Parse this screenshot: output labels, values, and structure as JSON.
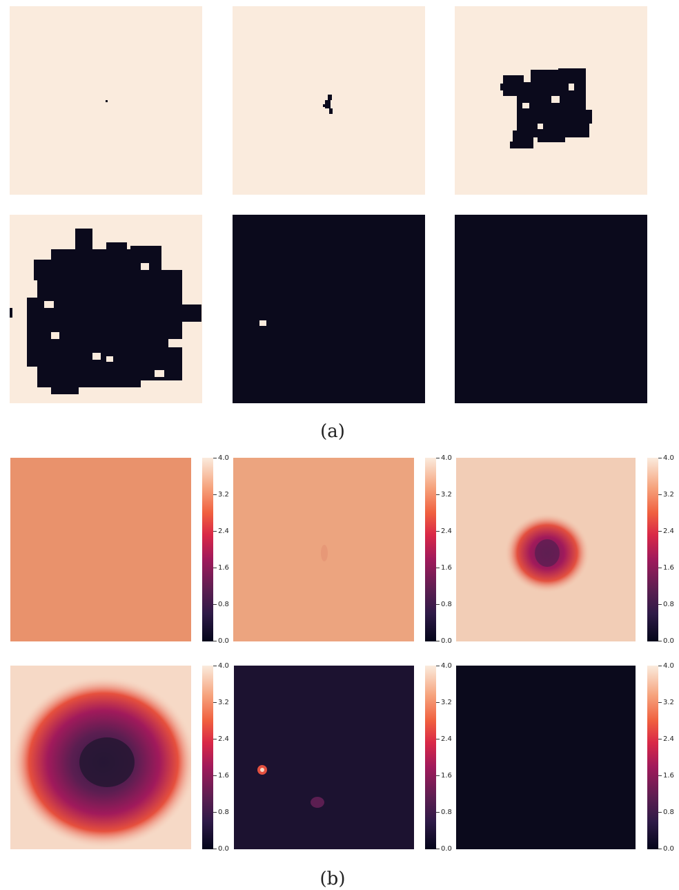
{
  "captions": {
    "a": "(a)",
    "b": "(b)"
  },
  "colors": {
    "light": "#faebdd",
    "dark": "#0b0a1c"
  },
  "colorbar": {
    "range": [
      0.0,
      4.0
    ],
    "tick_labels": [
      "4.0",
      "3.2",
      "2.4",
      "1.6",
      "0.8",
      "0.0"
    ]
  },
  "binary_panels": [
    "panel-1",
    "panel-2",
    "panel-3",
    "panel-4",
    "panel-5",
    "panel-6"
  ],
  "heatmap_panels": [
    {
      "level": 3.0
    },
    {
      "level": 3.3
    },
    {
      "level": 3.7
    },
    {
      "level": 3.8
    },
    {
      "level": 0.2
    },
    {
      "level": 0.0
    }
  ]
}
